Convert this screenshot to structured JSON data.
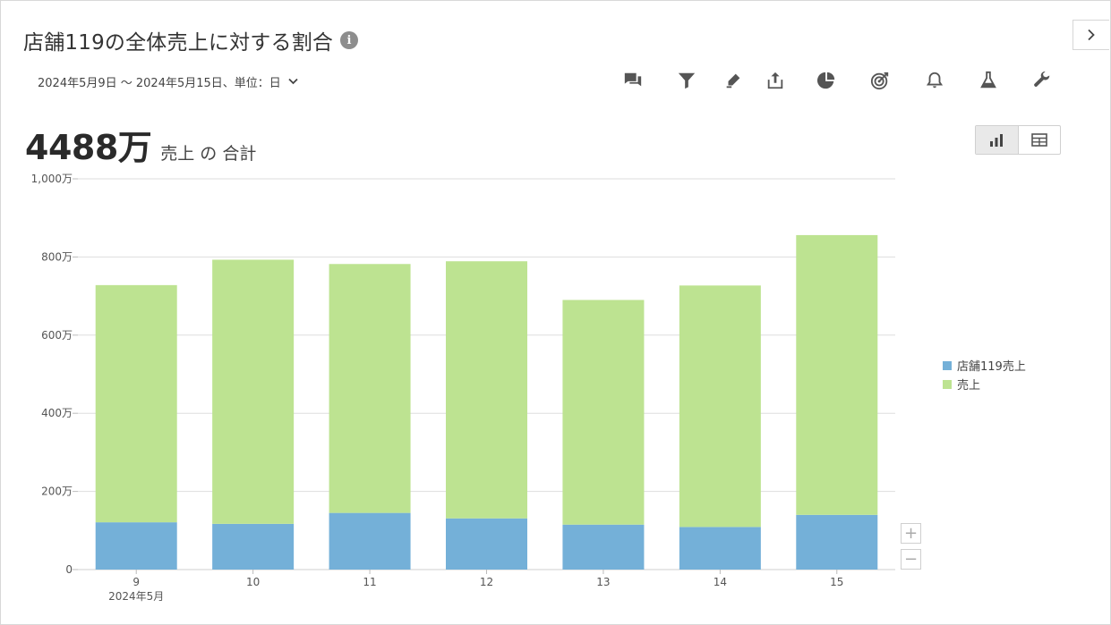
{
  "header": {
    "title": "店舗119の全体売上に対する割合",
    "date_range": "2024年5月9日 〜 2024年5月15日、単位：日",
    "expand_icon": "chevron-right-icon"
  },
  "toolbar": {
    "icons": [
      "comment-icon",
      "filter-icon",
      "pen-icon",
      "share-icon",
      "pie-chart-icon",
      "target-icon",
      "bell-icon",
      "flask-icon",
      "wrench-icon"
    ]
  },
  "summary": {
    "total_value": "4488万",
    "total_label": "売上 の 合計"
  },
  "view_toggle": {
    "active": "bar-chart-icon",
    "options": [
      "bar-chart-icon",
      "table-icon"
    ]
  },
  "zoom": {
    "in": "+",
    "out": "−"
  },
  "chart_data": {
    "type": "bar",
    "stacked": true,
    "categories": [
      "9",
      "10",
      "11",
      "12",
      "13",
      "14",
      "15"
    ],
    "x_sublabel": "2024年5月",
    "series": [
      {
        "name": "店舗119売上",
        "color": "#74b0d8",
        "values": [
          121,
          117,
          145,
          131,
          115,
          109,
          140
        ]
      },
      {
        "name": "売上",
        "color": "#bde391",
        "values": [
          607,
          676,
          637,
          658,
          575,
          618,
          716
        ]
      }
    ],
    "ylim": [
      0,
      1000
    ],
    "yticks": [
      0,
      200,
      400,
      600,
      800,
      1000
    ],
    "ytick_labels": [
      "0",
      "200万",
      "400万",
      "600万",
      "800万",
      "1,000万"
    ],
    "grid": true,
    "legend_position": "right"
  }
}
